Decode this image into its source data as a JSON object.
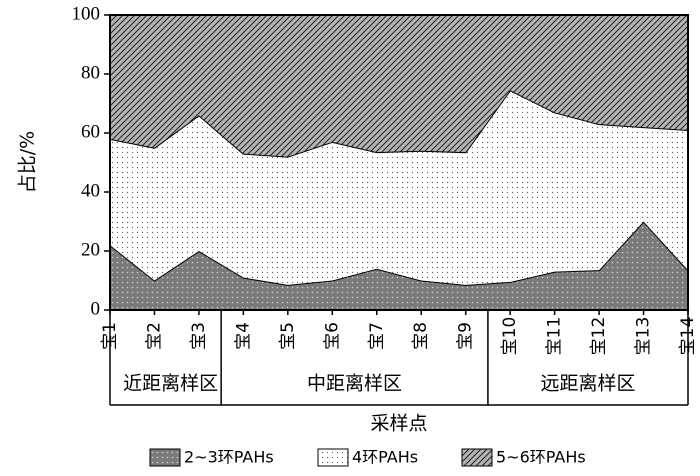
{
  "chart_data": {
    "type": "stacked-area",
    "y_label": "占比/%",
    "x_label": "采样点",
    "groups": [
      {
        "label": "近距离样区",
        "categories": [
          "宝1",
          "宝2",
          "宝3"
        ]
      },
      {
        "label": "中距离样区",
        "categories": [
          "宝4",
          "宝5",
          "宝6",
          "宝7",
          "宝8",
          "宝9"
        ]
      },
      {
        "label": "远距离样区",
        "categories": [
          "宝10",
          "宝11",
          "宝12",
          "宝13",
          "宝14"
        ]
      }
    ],
    "series": [
      {
        "name": "2~3环PAHs",
        "color": "#7a7a7a",
        "values": [
          22,
          10,
          20,
          11,
          8.5,
          10,
          14,
          10,
          8.5,
          9.5,
          13,
          13.5,
          30,
          13.5
        ]
      },
      {
        "name": "4环PAHs",
        "color": "#ffffff",
        "values": [
          36,
          45,
          46,
          42,
          43.5,
          47,
          39.5,
          44,
          45,
          65,
          54,
          49.5,
          32,
          47.5
        ]
      },
      {
        "name": "5~6环PAHs",
        "color": "#b4b4b4",
        "values": [
          42,
          45,
          34,
          47,
          48,
          43,
          46.5,
          46,
          46.5,
          25.5,
          33,
          37,
          38,
          39
        ]
      }
    ],
    "ylim": [
      0,
      100
    ],
    "yticks": [
      0,
      20,
      40,
      60,
      80,
      100
    ]
  }
}
